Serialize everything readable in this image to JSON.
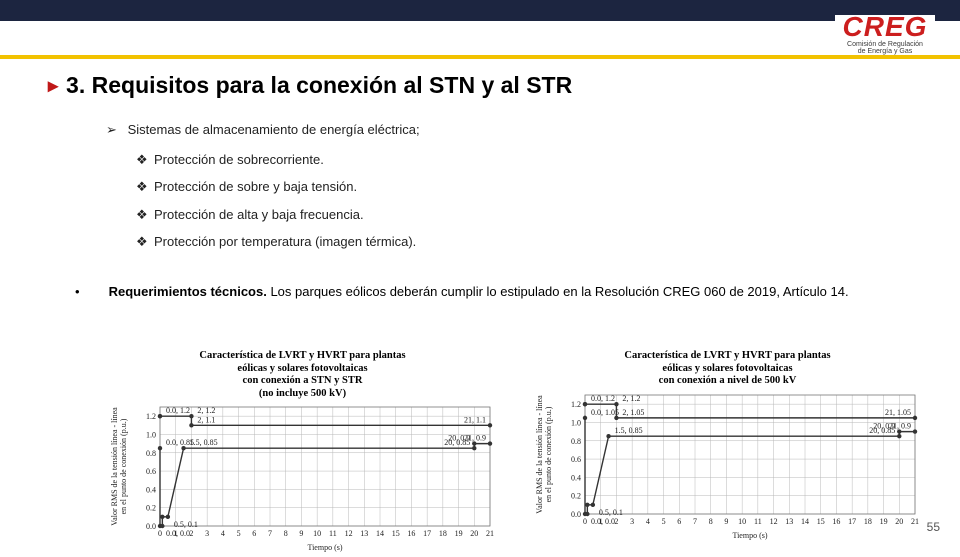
{
  "logo": {
    "main": "CREG",
    "sub1": "Comisión de Regulación",
    "sub2": "de Energía y Gas"
  },
  "title": "3. Requisitos para la conexión al STN y al STR",
  "bullets": {
    "lead": "Sistemas de almacenamiento de energía eléctrica;",
    "items": [
      "Protección de sobrecorriente.",
      "Protección de sobre y baja tensión.",
      "Protección de alta y baja frecuencia.",
      "Protección por temperatura (imagen térmica)."
    ]
  },
  "requirement": {
    "strong": "Requerimientos técnicos.",
    "rest": " Los parques eólicos deberán cumplir lo estipulado en la Resolución CREG 060 de 2019, Artículo 14."
  },
  "chart1": {
    "title1": "Característica de LVRT y HVRT para plantas",
    "title2": "eólicas y solares fotovoltaicas",
    "title3": "con conexión a STN y STR",
    "title4": "(no incluye 500 kV)",
    "xlabel": "Tiempo (s)",
    "ylabel": "Valor RMS de la tensión línea - línea\nen el punto de conexión (p.u.)",
    "xlim": [
      0,
      21
    ],
    "ylim": [
      0,
      1.3
    ],
    "xticks": [
      0,
      1,
      2,
      3,
      4,
      5,
      6,
      7,
      8,
      9,
      10,
      11,
      12,
      13,
      14,
      15,
      16,
      17,
      18,
      19,
      20,
      21
    ],
    "yticks": [
      0.0,
      0.2,
      0.4,
      0.6,
      0.8,
      1.0,
      1.2
    ],
    "upper": [
      [
        0,
        1.2
      ],
      [
        0,
        1.2
      ],
      [
        2,
        1.2
      ],
      [
        2,
        1.1
      ],
      [
        21,
        1.1
      ]
    ],
    "upper_labels": [
      [
        0.0,
        1.2,
        "0.0, 1.2"
      ],
      [
        2,
        1.2,
        "2, 1.2"
      ],
      [
        2,
        1.1,
        "2, 1.1"
      ],
      [
        21,
        1.1,
        "21, 1.1"
      ]
    ],
    "lower": [
      [
        0,
        0.85
      ],
      [
        0,
        0
      ],
      [
        0.15,
        0
      ],
      [
        0.15,
        0.1
      ],
      [
        0.5,
        0.1
      ],
      [
        1.5,
        0.85
      ],
      [
        20,
        0.85
      ],
      [
        20,
        0.9
      ],
      [
        21,
        0.9
      ]
    ],
    "lower_labels": [
      [
        0.0,
        0.85,
        "0.0, 0.85"
      ],
      [
        0.0,
        0.0,
        "0.0, 0.0"
      ],
      [
        0.5,
        0.1,
        "0.5, 0.1"
      ],
      [
        1.5,
        0.85,
        "1.5, 0.85"
      ],
      [
        20,
        0.85,
        "20, 0.85"
      ],
      [
        20,
        0.9,
        "20, 0.9"
      ],
      [
        21,
        0.9,
        "21, 0.9"
      ]
    ],
    "line_color": "#333333",
    "line_width": 1.4,
    "grid_color": "#b8b8b8",
    "bg": "#ffffff",
    "marker_size": 2.2
  },
  "chart2": {
    "title1": "Característica de LVRT y HVRT para plantas",
    "title2": "eólicas y solares fotovoltaicas",
    "title3": "con conexión a nivel de 500 kV",
    "xlabel": "Tiempo (s)",
    "ylabel": "Valor RMS de la tensión línea - línea\nen el punto de conexión (p.u.)",
    "xlim": [
      0,
      21
    ],
    "ylim": [
      0,
      1.3
    ],
    "xticks": [
      0,
      1,
      2,
      3,
      4,
      5,
      6,
      7,
      8,
      9,
      10,
      11,
      12,
      13,
      14,
      15,
      16,
      17,
      18,
      19,
      20,
      21
    ],
    "yticks": [
      0.0,
      0.2,
      0.4,
      0.6,
      0.8,
      1.0,
      1.2
    ],
    "upper": [
      [
        0,
        1.2
      ],
      [
        0,
        1.2
      ],
      [
        2,
        1.2
      ],
      [
        2,
        1.05
      ],
      [
        21,
        1.05
      ]
    ],
    "upper_labels": [
      [
        0.0,
        1.2,
        "0.0, 1.2"
      ],
      [
        2,
        1.2,
        "2, 1.2"
      ],
      [
        2,
        1.05,
        "2, 1.05"
      ],
      [
        21,
        1.05,
        "21, 1.05"
      ]
    ],
    "lower": [
      [
        0,
        1.05
      ],
      [
        0,
        0
      ],
      [
        0.15,
        0
      ],
      [
        0.15,
        0.1
      ],
      [
        0.5,
        0.1
      ],
      [
        1.5,
        0.85
      ],
      [
        20,
        0.85
      ],
      [
        20,
        0.9
      ],
      [
        21,
        0.9
      ]
    ],
    "lower_labels": [
      [
        0.0,
        1.05,
        "0.0, 1.05"
      ],
      [
        0.0,
        0.0,
        "0.0, 0.0"
      ],
      [
        0.5,
        0.1,
        "0.5, 0.1"
      ],
      [
        1.5,
        0.85,
        "1.5, 0.85"
      ],
      [
        20,
        0.85,
        "20, 0.85"
      ],
      [
        20,
        0.9,
        "20, 0.9"
      ],
      [
        21,
        0.9,
        "21, 0.9"
      ]
    ],
    "line_color": "#333333",
    "line_width": 1.4,
    "grid_color": "#b8b8b8",
    "bg": "#ffffff",
    "marker_size": 2.2
  },
  "page_number": "55"
}
